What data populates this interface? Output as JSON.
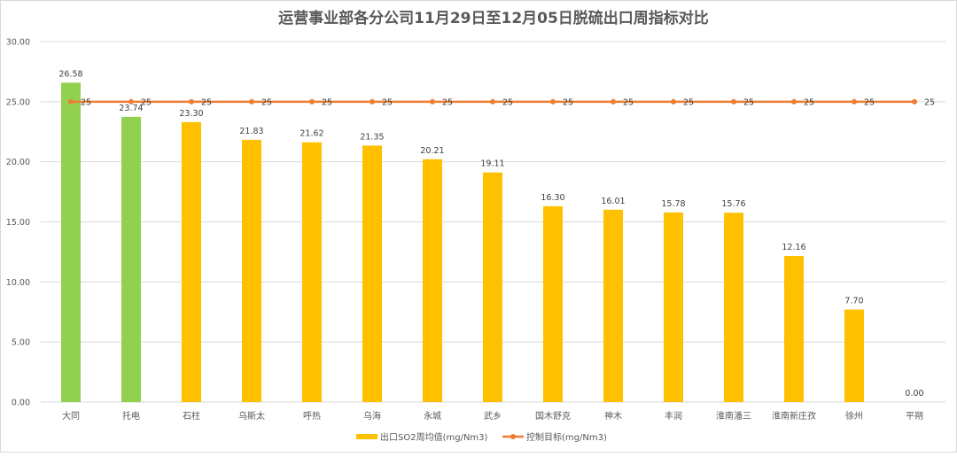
{
  "chart_data": {
    "type": "bar",
    "title": "运营事业部各分公司11月29日至12月05日脱硫出口周指标对比",
    "categories": [
      "大同",
      "托电",
      "石柱",
      "乌斯太",
      "呼热",
      "乌海",
      "永城",
      "武乡",
      "国木舒克",
      "神木",
      "丰润",
      "淮南潘三",
      "淮南新庄孜",
      "徐州",
      "平朔"
    ],
    "series": [
      {
        "name": "出口SO2周均值(mg/Nm3)",
        "type": "bar",
        "values": [
          26.58,
          23.74,
          23.3,
          21.83,
          21.62,
          21.35,
          20.21,
          19.11,
          16.3,
          16.01,
          15.78,
          15.76,
          12.16,
          7.7,
          0.0
        ],
        "colors": [
          "#92d050",
          "#92d050",
          "#ffc000",
          "#ffc000",
          "#ffc000",
          "#ffc000",
          "#ffc000",
          "#ffc000",
          "#ffc000",
          "#ffc000",
          "#ffc000",
          "#ffc000",
          "#ffc000",
          "#ffc000",
          "#ffc000"
        ]
      },
      {
        "name": "控制目标(mg/Nm3)",
        "type": "line",
        "color": "#ed7d31",
        "values": [
          25,
          25,
          25,
          25,
          25,
          25,
          25,
          25,
          25,
          25,
          25,
          25,
          25,
          25,
          25
        ]
      }
    ],
    "ylim": [
      0,
      30
    ],
    "yticks": [
      "0.00",
      "5.00",
      "10.00",
      "15.00",
      "20.00",
      "25.00",
      "30.00"
    ],
    "grid": true,
    "legend": "bottom"
  }
}
